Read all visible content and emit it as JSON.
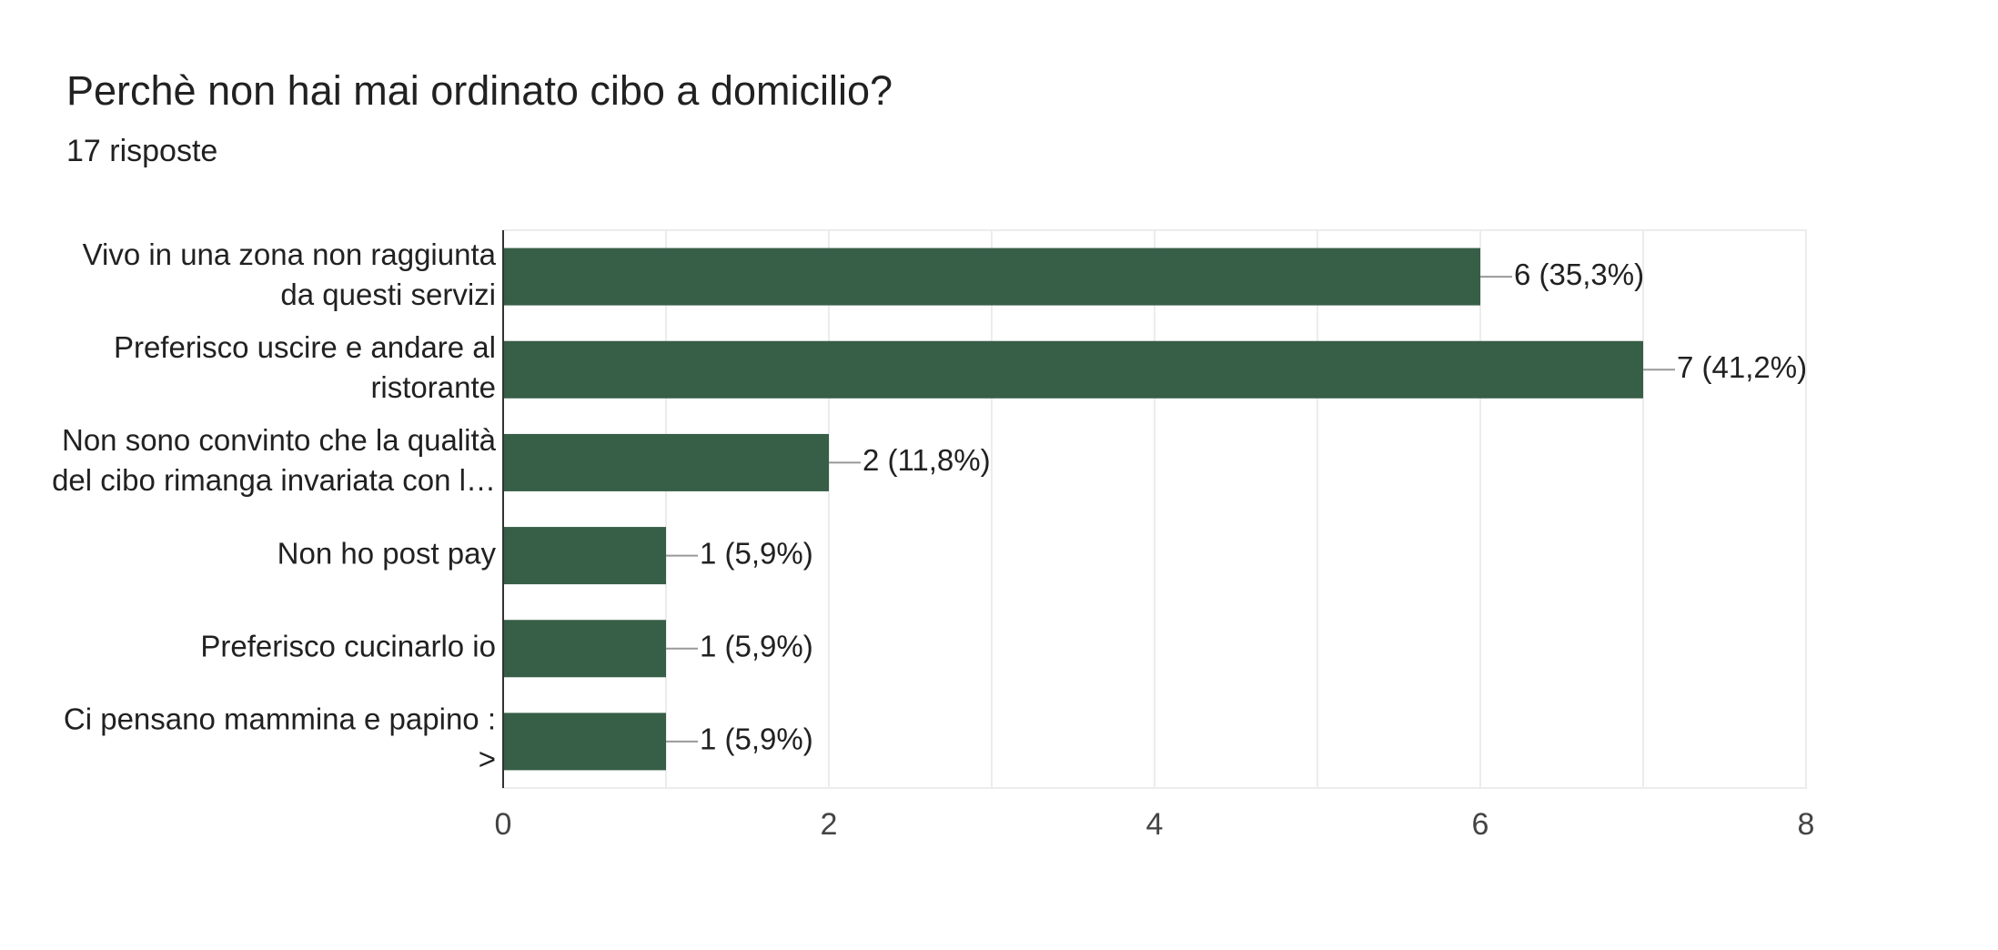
{
  "chart_data": {
    "type": "bar",
    "orientation": "horizontal",
    "title": "Perchè non hai mai ordinato cibo a domicilio?",
    "subtitle": "17 risposte",
    "categories": [
      [
        "Vivo in una zona non raggiunta",
        "da questi servizi"
      ],
      [
        "Preferisco uscire e andare al",
        "ristorante"
      ],
      [
        "Non sono convinto che la qualità",
        "del cibo rimanga invariata con l…"
      ],
      [
        "Non ho post pay"
      ],
      [
        "Preferisco cucinarlo io"
      ],
      [
        "Ci pensano mammina e papino :",
        ">"
      ]
    ],
    "values": [
      6,
      7,
      2,
      1,
      1,
      1
    ],
    "value_labels": [
      "6 (35,3%)",
      "7 (41,2%)",
      "2 (11,8%)",
      "1 (5,9%)",
      "1 (5,9%)",
      "1 (5,9%)"
    ],
    "color": "#375e47",
    "xlim": [
      0,
      8
    ],
    "xticks": [
      0,
      2,
      4,
      6,
      8
    ],
    "minor_xticks": [
      1,
      3,
      5,
      7
    ],
    "grid": true
  }
}
